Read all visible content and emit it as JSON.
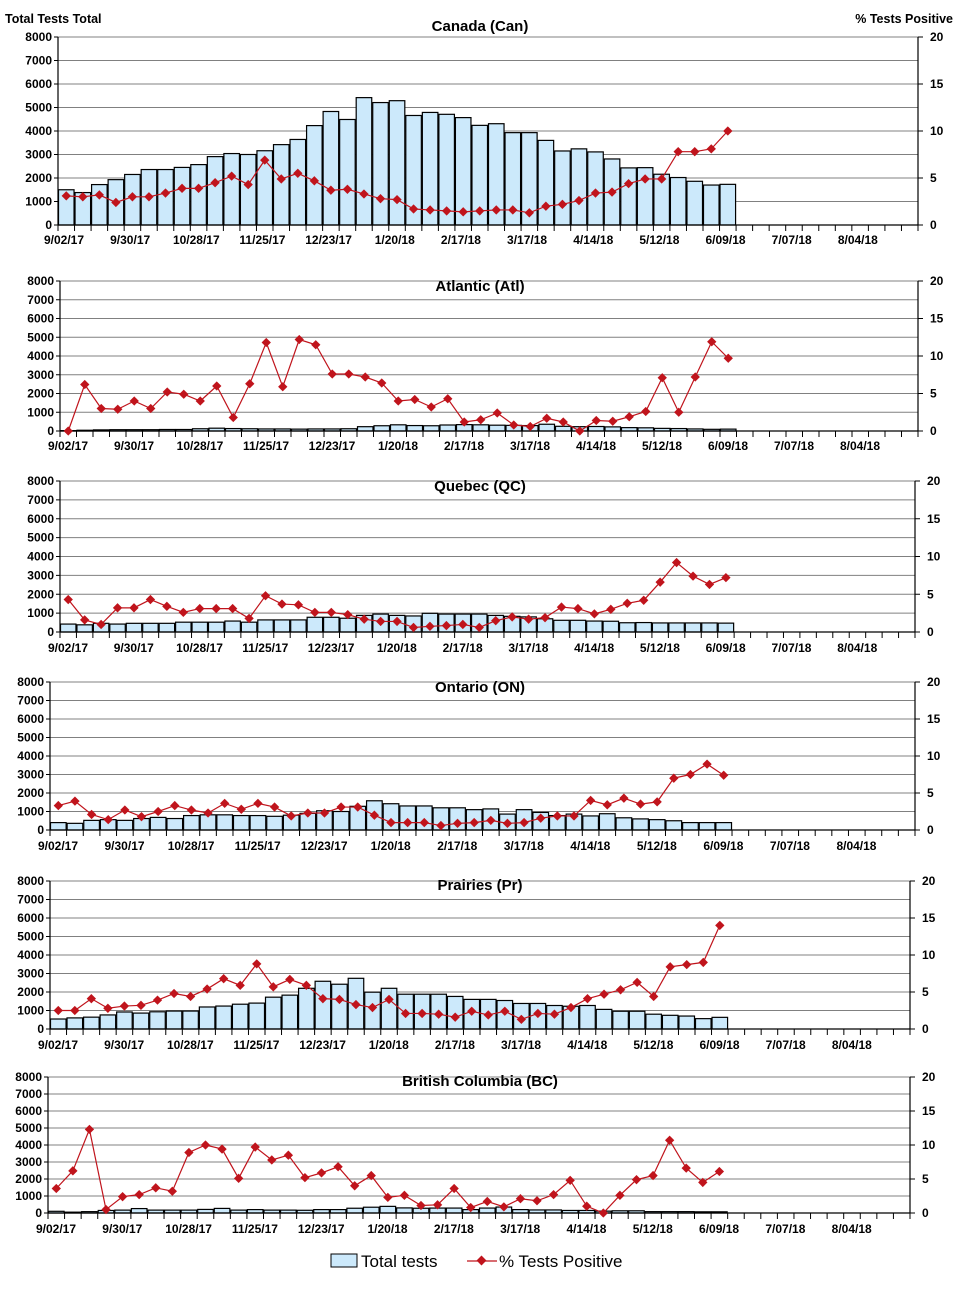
{
  "figure": {
    "left_axis_label": "Total Tests  Total",
    "right_axis_label": "% Tests  Positive",
    "legend": {
      "bars": "Total tests",
      "line": "% Tests Positive",
      "placement": "bottom"
    },
    "colors": {
      "bar_fill": "#cce9fb",
      "bar_stroke": "#000000",
      "line": "#c0141c",
      "grid": "#808080"
    }
  },
  "chart_data": [
    {
      "type": "bar+line",
      "title": "Canada (Can)",
      "x_tick_labels": [
        "9/02/17",
        "9/30/17",
        "10/28/17",
        "11/25/17",
        "12/23/17",
        "1/20/18",
        "2/17/18",
        "3/17/18",
        "4/14/18",
        "5/12/18",
        "6/09/18",
        "7/07/18",
        "8/04/18"
      ],
      "weeks_on_axis": 52,
      "y_left": {
        "ticks": [
          "0",
          "1000",
          "2000",
          "3000",
          "4000",
          "5000",
          "6000",
          "7000",
          "8000"
        ],
        "range": [
          0,
          8000
        ]
      },
      "y_right": {
        "ticks": [
          "0",
          "5",
          "10",
          "15",
          "20"
        ],
        "range": [
          0,
          20
        ]
      },
      "grid": true,
      "series": [
        {
          "name": "Total tests",
          "type": "bar",
          "values": [
            1500,
            1380,
            1720,
            1930,
            2150,
            2360,
            2360,
            2450,
            2570,
            2910,
            3040,
            3000,
            3160,
            3420,
            3640,
            4230,
            4830,
            4490,
            5420,
            5210,
            5290,
            4660,
            4790,
            4710,
            4570,
            4240,
            4310,
            3930,
            3930,
            3600,
            3150,
            3240,
            3110,
            2810,
            2430,
            2440,
            2160,
            2020,
            1860,
            1700,
            1730
          ]
        },
        {
          "name": "% Tests Positive",
          "type": "line",
          "axis": "right",
          "values": [
            3.1,
            3.0,
            3.2,
            2.4,
            3.0,
            3.0,
            3.4,
            3.9,
            3.9,
            4.5,
            5.2,
            4.3,
            6.9,
            4.9,
            5.5,
            4.7,
            3.7,
            3.8,
            3.3,
            2.8,
            2.7,
            1.7,
            1.6,
            1.5,
            1.4,
            1.5,
            1.6,
            1.6,
            1.3,
            2.0,
            2.2,
            2.6,
            3.4,
            3.5,
            4.4,
            4.9,
            4.9,
            7.8,
            7.8,
            8.1,
            10.0
          ]
        }
      ]
    },
    {
      "type": "bar+line",
      "title": "Atlantic (Atl)",
      "x_tick_labels": [
        "9/02/17",
        "9/30/17",
        "10/28/17",
        "11/25/17",
        "12/23/17",
        "1/20/18",
        "2/17/18",
        "3/17/18",
        "4/14/18",
        "5/12/18",
        "6/09/18",
        "7/07/18",
        "8/04/18"
      ],
      "weeks_on_axis": 52,
      "y_left": {
        "ticks": [
          "0",
          "1000",
          "2000",
          "3000",
          "4000",
          "5000",
          "6000",
          "7000",
          "8000"
        ],
        "range": [
          0,
          8000
        ]
      },
      "y_right": {
        "ticks": [
          "0",
          "5",
          "10",
          "15",
          "20"
        ],
        "range": [
          0,
          20
        ]
      },
      "grid": true,
      "series": [
        {
          "name": "Total tests",
          "type": "bar",
          "values": [
            20,
            40,
            60,
            70,
            70,
            70,
            80,
            80,
            120,
            150,
            130,
            120,
            110,
            110,
            100,
            110,
            110,
            120,
            230,
            280,
            330,
            290,
            280,
            320,
            340,
            330,
            310,
            300,
            290,
            360,
            250,
            230,
            240,
            220,
            180,
            170,
            140,
            130,
            110,
            90,
            100
          ]
        },
        {
          "name": "% Tests Positive",
          "type": "line",
          "axis": "right",
          "values": [
            0,
            6.2,
            3.0,
            2.9,
            4.0,
            3.0,
            5.2,
            4.9,
            4.0,
            6.0,
            1.8,
            6.3,
            11.8,
            5.9,
            12.2,
            11.5,
            7.6,
            7.6,
            7.2,
            6.4,
            4.0,
            4.2,
            3.2,
            4.3,
            1.2,
            1.5,
            2.4,
            0.8,
            0.6,
            1.7,
            1.2,
            0,
            1.4,
            1.3,
            1.9,
            2.6,
            7.1,
            2.5,
            7.2,
            11.9,
            9.7
          ]
        }
      ]
    },
    {
      "type": "bar+line",
      "title": "Quebec (QC)",
      "x_tick_labels": [
        "9/02/17",
        "9/30/17",
        "10/28/17",
        "11/25/17",
        "12/23/17",
        "1/20/18",
        "2/17/18",
        "3/17/18",
        "4/14/18",
        "5/12/18",
        "6/09/18",
        "7/07/18",
        "8/04/18"
      ],
      "weeks_on_axis": 52,
      "y_left": {
        "ticks": [
          "0",
          "1000",
          "2000",
          "3000",
          "4000",
          "5000",
          "6000",
          "7000",
          "8000"
        ],
        "range": [
          0,
          8000
        ]
      },
      "y_right": {
        "ticks": [
          "0",
          "5",
          "10",
          "15",
          "20"
        ],
        "range": [
          0,
          20
        ]
      },
      "grid": true,
      "series": [
        {
          "name": "Total tests",
          "type": "bar",
          "values": [
            420,
            380,
            460,
            420,
            460,
            460,
            460,
            520,
            520,
            520,
            580,
            520,
            640,
            640,
            640,
            780,
            780,
            730,
            880,
            950,
            880,
            850,
            990,
            950,
            950,
            950,
            880,
            830,
            800,
            700,
            620,
            620,
            580,
            570,
            490,
            500,
            480,
            480,
            480,
            480,
            470
          ]
        },
        {
          "name": "% Tests Positive",
          "type": "line",
          "axis": "right",
          "values": [
            4.3,
            1.6,
            1.0,
            3.2,
            3.2,
            4.3,
            3.4,
            2.6,
            3.1,
            3.1,
            3.1,
            1.8,
            4.8,
            3.7,
            3.6,
            2.6,
            2.6,
            2.3,
            1.7,
            1.4,
            1.4,
            0.6,
            0.75,
            0.85,
            1.0,
            0.6,
            1.5,
            2.0,
            1.7,
            1.9,
            3.3,
            3.1,
            2.4,
            3.0,
            3.8,
            4.2,
            6.6,
            9.2,
            7.4,
            6.3,
            7.2
          ]
        }
      ]
    },
    {
      "type": "bar+line",
      "title": "Ontario (ON)",
      "x_tick_labels": [
        "9/02/17",
        "9/30/17",
        "10/28/17",
        "11/25/17",
        "12/23/17",
        "1/20/18",
        "2/17/18",
        "3/17/18",
        "4/14/18",
        "5/12/18",
        "6/09/18",
        "7/07/18",
        "8/04/18"
      ],
      "weeks_on_axis": 52,
      "y_left": {
        "ticks": [
          "0",
          "1000",
          "2000",
          "3000",
          "4000",
          "5000",
          "6000",
          "7000",
          "8000"
        ],
        "range": [
          0,
          8000
        ]
      },
      "y_right": {
        "ticks": [
          "0",
          "5",
          "10",
          "15",
          "20"
        ],
        "range": [
          0,
          20
        ]
      },
      "grid": true,
      "series": [
        {
          "name": "Total tests",
          "type": "bar",
          "values": [
            400,
            360,
            520,
            560,
            520,
            620,
            680,
            620,
            780,
            820,
            820,
            780,
            780,
            740,
            800,
            900,
            1040,
            1000,
            1280,
            1580,
            1420,
            1300,
            1300,
            1200,
            1200,
            1100,
            1140,
            860,
            1100,
            950,
            780,
            860,
            760,
            880,
            660,
            600,
            560,
            500,
            400,
            400,
            400
          ]
        },
        {
          "name": "% Tests Positive",
          "type": "line",
          "axis": "right",
          "values": [
            3.3,
            3.9,
            2.1,
            1.4,
            2.7,
            1.8,
            2.5,
            3.3,
            2.7,
            2.3,
            3.6,
            2.8,
            3.6,
            3.1,
            1.9,
            2.3,
            2.3,
            3.1,
            3.1,
            2.0,
            1.0,
            1.0,
            1.0,
            0.6,
            0.9,
            1.0,
            1.3,
            0.9,
            1.0,
            1.6,
            1.9,
            1.9,
            4.0,
            3.4,
            4.3,
            3.5,
            3.8,
            7.0,
            7.5,
            8.9,
            7.4
          ]
        }
      ]
    },
    {
      "type": "bar+line",
      "title": "Prairies (Pr)",
      "x_tick_labels": [
        "9/02/17",
        "9/30/17",
        "10/28/17",
        "11/25/17",
        "12/23/17",
        "1/20/18",
        "2/17/18",
        "3/17/18",
        "4/14/18",
        "5/12/18",
        "6/09/18",
        "7/07/18",
        "8/04/18"
      ],
      "weeks_on_axis": 52,
      "y_left": {
        "ticks": [
          "0",
          "1000",
          "2000",
          "3000",
          "4000",
          "5000",
          "6000",
          "7000",
          "8000"
        ],
        "range": [
          0,
          8000
        ]
      },
      "y_right": {
        "ticks": [
          "0",
          "5",
          "10",
          "15",
          "20"
        ],
        "range": [
          0,
          20
        ]
      },
      "grid": true,
      "series": [
        {
          "name": "Total tests",
          "type": "bar",
          "values": [
            540,
            600,
            640,
            760,
            920,
            860,
            930,
            970,
            970,
            1190,
            1240,
            1340,
            1400,
            1720,
            1830,
            2200,
            2580,
            2420,
            2740,
            1990,
            2200,
            1880,
            1880,
            1880,
            1760,
            1600,
            1600,
            1540,
            1380,
            1380,
            1270,
            1230,
            1270,
            1060,
            960,
            960,
            800,
            740,
            700,
            560,
            630
          ]
        },
        {
          "name": "% Tests Positive",
          "type": "line",
          "axis": "right",
          "values": [
            2.5,
            2.5,
            4.1,
            2.8,
            3.1,
            3.2,
            3.9,
            4.8,
            4.4,
            5.4,
            6.8,
            5.9,
            8.8,
            5.7,
            6.7,
            5.9,
            4.1,
            4.0,
            3.3,
            2.9,
            4.0,
            2.1,
            2.1,
            2.0,
            1.6,
            2.4,
            1.9,
            2.4,
            1.3,
            2.1,
            2.0,
            2.9,
            4.1,
            4.7,
            5.3,
            6.3,
            4.4,
            8.4,
            8.7,
            9.0,
            14.0
          ]
        }
      ]
    },
    {
      "type": "bar+line",
      "title": "British Columbia (BC)",
      "x_tick_labels": [
        "9/02/17",
        "9/30/17",
        "10/28/17",
        "11/25/17",
        "12/23/17",
        "1/20/18",
        "2/17/18",
        "3/17/18",
        "4/14/18",
        "5/12/18",
        "6/09/18",
        "7/07/18",
        "8/04/18"
      ],
      "weeks_on_axis": 52,
      "y_left": {
        "ticks": [
          "0",
          "1000",
          "2000",
          "3000",
          "4000",
          "5000",
          "6000",
          "7000",
          "8000"
        ],
        "range": [
          0,
          8000
        ]
      },
      "y_right": {
        "ticks": [
          "0",
          "5",
          "10",
          "15",
          "20"
        ],
        "range": [
          0,
          20
        ]
      },
      "grid": true,
      "series": [
        {
          "name": "Total tests",
          "type": "bar",
          "values": [
            100,
            50,
            80,
            150,
            170,
            260,
            170,
            170,
            170,
            210,
            270,
            170,
            200,
            170,
            170,
            160,
            200,
            200,
            280,
            340,
            390,
            300,
            280,
            290,
            290,
            200,
            290,
            350,
            200,
            180,
            180,
            150,
            150,
            110,
            130,
            130,
            80,
            80,
            80,
            70,
            70
          ]
        },
        {
          "name": "% Tests Positive",
          "type": "line",
          "axis": "right",
          "values": [
            3.6,
            6.2,
            12.3,
            0.5,
            2.4,
            2.7,
            3.7,
            3.2,
            8.9,
            10.0,
            9.4,
            5.1,
            9.7,
            7.8,
            8.5,
            5.2,
            5.9,
            6.8,
            4.0,
            5.5,
            2.3,
            2.6,
            1.1,
            1.2,
            3.6,
            0.8,
            1.7,
            0.9,
            2.1,
            1.8,
            2.7,
            4.8,
            1.0,
            0,
            2.6,
            4.9,
            5.5,
            10.7,
            6.6,
            4.5,
            6.1
          ]
        }
      ]
    }
  ]
}
